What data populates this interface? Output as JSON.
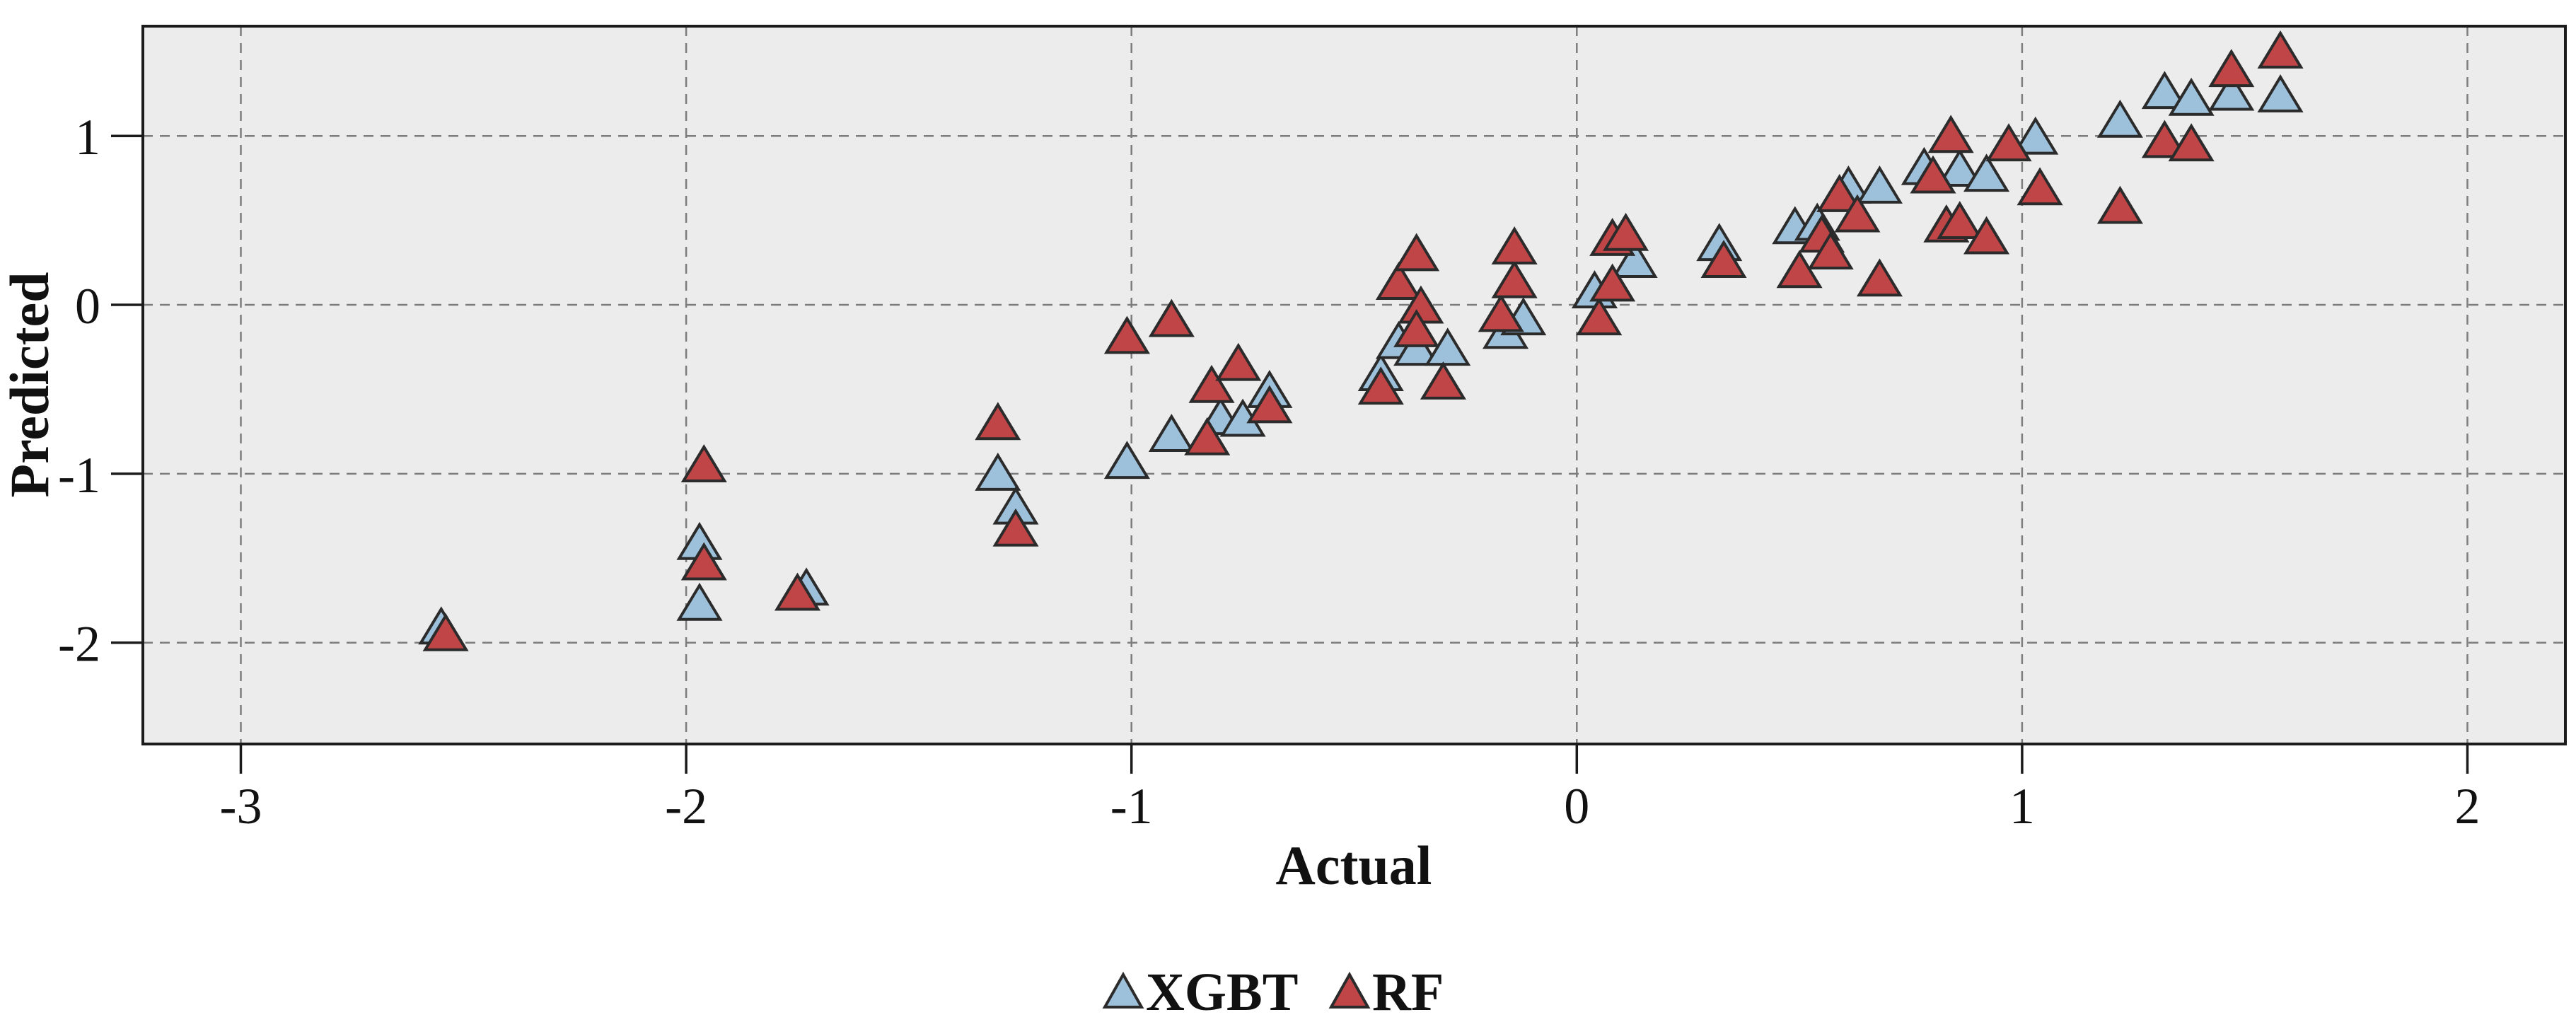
{
  "chart_data": {
    "type": "scatter",
    "title": "",
    "xlabel": "Actual",
    "ylabel": "Predicted",
    "xlim": [
      -3.22,
      2.22
    ],
    "ylim": [
      -2.6,
      1.65
    ],
    "x_ticks": [
      -3,
      -2,
      -1,
      0,
      1,
      2
    ],
    "y_ticks": [
      1,
      0,
      -1,
      -2
    ],
    "grid": "dashed",
    "legend_position": "bottom-center",
    "marker": "triangle-up",
    "series": [
      {
        "name": "XGBT",
        "fill": "#9EC1DB",
        "points": [
          [
            -2.55,
            -1.91
          ],
          [
            -1.97,
            -1.41
          ],
          [
            -1.97,
            -1.77
          ],
          [
            -1.73,
            -1.68
          ],
          [
            -1.3,
            -1.0
          ],
          [
            -1.26,
            -1.2
          ],
          [
            -1.01,
            -0.93
          ],
          [
            -0.91,
            -0.77
          ],
          [
            -0.8,
            -0.67
          ],
          [
            -0.75,
            -0.68
          ],
          [
            -0.69,
            -0.51
          ],
          [
            -0.44,
            -0.41
          ],
          [
            -0.4,
            -0.22
          ],
          [
            -0.36,
            -0.26
          ],
          [
            -0.29,
            -0.26
          ],
          [
            -0.16,
            -0.16
          ],
          [
            -0.12,
            -0.08
          ],
          [
            0.04,
            0.08
          ],
          [
            0.13,
            0.26
          ],
          [
            0.32,
            0.36
          ],
          [
            0.49,
            0.46
          ],
          [
            0.54,
            0.48
          ],
          [
            0.61,
            0.7
          ],
          [
            0.68,
            0.7
          ],
          [
            0.78,
            0.81
          ],
          [
            0.86,
            0.8
          ],
          [
            0.92,
            0.77
          ],
          [
            1.03,
            0.99
          ],
          [
            1.22,
            1.09
          ],
          [
            1.32,
            1.26
          ],
          [
            1.38,
            1.22
          ],
          [
            1.47,
            1.25
          ],
          [
            1.58,
            1.24
          ]
        ]
      },
      {
        "name": "RF",
        "fill": "#C04547",
        "points": [
          [
            -2.54,
            -1.95
          ],
          [
            -1.96,
            -0.95
          ],
          [
            -1.96,
            -1.53
          ],
          [
            -1.75,
            -1.71
          ],
          [
            -1.3,
            -0.7
          ],
          [
            -1.26,
            -1.33
          ],
          [
            -1.01,
            -0.19
          ],
          [
            -0.91,
            -0.09
          ],
          [
            -0.83,
            -0.79
          ],
          [
            -0.82,
            -0.48
          ],
          [
            -0.76,
            -0.35
          ],
          [
            -0.69,
            -0.6
          ],
          [
            -0.44,
            -0.49
          ],
          [
            -0.4,
            0.13
          ],
          [
            -0.36,
            0.3
          ],
          [
            -0.35,
            -0.01
          ],
          [
            -0.36,
            -0.15
          ],
          [
            -0.3,
            -0.46
          ],
          [
            -0.17,
            -0.06
          ],
          [
            -0.14,
            0.14
          ],
          [
            -0.14,
            0.34
          ],
          [
            0.05,
            -0.08
          ],
          [
            0.08,
            0.12
          ],
          [
            0.08,
            0.39
          ],
          [
            0.11,
            0.42
          ],
          [
            0.33,
            0.26
          ],
          [
            0.5,
            0.2
          ],
          [
            0.55,
            0.41
          ],
          [
            0.57,
            0.31
          ],
          [
            0.59,
            0.65
          ],
          [
            0.63,
            0.53
          ],
          [
            0.68,
            0.15
          ],
          [
            0.8,
            0.76
          ],
          [
            0.83,
            0.47
          ],
          [
            0.86,
            0.49
          ],
          [
            0.84,
            1.0
          ],
          [
            0.92,
            0.4
          ],
          [
            0.97,
            0.95
          ],
          [
            1.04,
            0.69
          ],
          [
            1.22,
            0.58
          ],
          [
            1.32,
            0.97
          ],
          [
            1.38,
            0.95
          ],
          [
            1.47,
            1.39
          ],
          [
            1.58,
            1.5
          ]
        ]
      }
    ]
  },
  "legend": {
    "items": [
      {
        "label": "XGBT",
        "color": "#9EC1DB"
      },
      {
        "label": "RF",
        "color": "#C04547"
      }
    ]
  },
  "styles": {
    "page_bg": "#FFFFFF",
    "plot_bg": "#ECECEC",
    "grid_color": "#7D7D7D",
    "axis_color": "#1B1B1B",
    "marker_stroke": "#2B2B2B",
    "text_color": "#111111"
  }
}
